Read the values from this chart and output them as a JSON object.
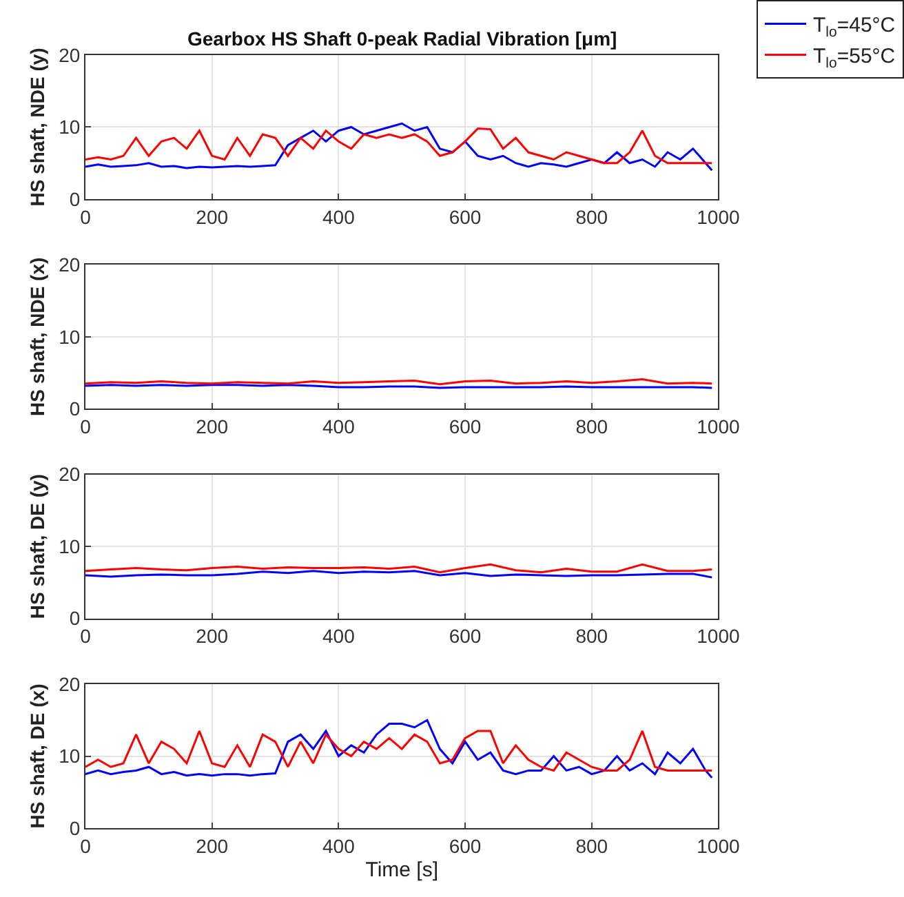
{
  "chart_data": [
    {
      "type": "line",
      "title": "Gearbox HS Shaft 0-peak Radial Vibration [μm]",
      "ylabel": "HS shaft, NDE (y)",
      "xlim": [
        0,
        1000
      ],
      "xticks": [
        0,
        200,
        400,
        600,
        800,
        1000
      ],
      "ylim": [
        0,
        20
      ],
      "yticks": [
        0,
        10,
        20
      ],
      "grid": true,
      "legend": "top right",
      "line_style": "solid",
      "x": [
        0,
        20,
        40,
        60,
        80,
        100,
        120,
        140,
        160,
        180,
        200,
        220,
        240,
        260,
        280,
        300,
        320,
        340,
        360,
        380,
        400,
        420,
        440,
        460,
        480,
        500,
        520,
        540,
        560,
        580,
        600,
        620,
        640,
        660,
        680,
        700,
        720,
        740,
        760,
        780,
        800,
        820,
        840,
        860,
        880,
        900,
        920,
        940,
        960,
        980,
        990
      ],
      "series": [
        {
          "name": "T$_{lo}$=45°C",
          "color": "#0000ff",
          "values": [
            4.5,
            4.8,
            4.5,
            4.6,
            4.7,
            5,
            4.5,
            4.6,
            4.3,
            4.5,
            4.4,
            4.5,
            4.6,
            4.5,
            4.6,
            4.7,
            7.5,
            8.5,
            9.5,
            8,
            9.5,
            10,
            9,
            9.5,
            10,
            10.5,
            9.5,
            10,
            7,
            6.5,
            8,
            6,
            5.5,
            6,
            5,
            4.5,
            5,
            4.8,
            4.5,
            5,
            5.5,
            5,
            6.5,
            5,
            5.5,
            4.5,
            6.5,
            5.5,
            7,
            5,
            4
          ]
        },
        {
          "name": "T$_{lo}$=55°C",
          "color": "#ff0000",
          "values": [
            5.5,
            5.8,
            5.5,
            6,
            8.5,
            6,
            8,
            8.5,
            7,
            9.5,
            6,
            5.5,
            8.5,
            6,
            9,
            8.5,
            6,
            8.5,
            7,
            9.5,
            8,
            7,
            9,
            8.5,
            9,
            8.5,
            9,
            8,
            6,
            6.5,
            8,
            9.8,
            9.7,
            7,
            8.5,
            6.5,
            6,
            5.5,
            6.5,
            6,
            5.5,
            5,
            5,
            6.5,
            9.5,
            6,
            5,
            5,
            5,
            5,
            5
          ]
        }
      ]
    },
    {
      "type": "line",
      "ylabel": "HS shaft, NDE (x)",
      "xlim": [
        0,
        1000
      ],
      "xticks": [
        0,
        200,
        400,
        600,
        800,
        1000
      ],
      "ylim": [
        0,
        20
      ],
      "yticks": [
        0,
        10,
        20
      ],
      "grid": true,
      "line_style": "solid",
      "x": [
        0,
        40,
        80,
        120,
        160,
        200,
        240,
        280,
        320,
        360,
        400,
        440,
        480,
        520,
        560,
        600,
        640,
        680,
        720,
        760,
        800,
        840,
        880,
        920,
        960,
        990
      ],
      "series": [
        {
          "color": "#0000ff",
          "values": [
            3.2,
            3.3,
            3.2,
            3.3,
            3.2,
            3.3,
            3.3,
            3.2,
            3.3,
            3.2,
            3.0,
            3.0,
            3.1,
            3.1,
            2.9,
            3.0,
            3.0,
            3.0,
            3.0,
            3.1,
            3.0,
            3.0,
            3.0,
            3.0,
            3.0,
            2.9
          ]
        },
        {
          "color": "#ff0000",
          "values": [
            3.5,
            3.7,
            3.6,
            3.8,
            3.6,
            3.5,
            3.7,
            3.6,
            3.5,
            3.8,
            3.6,
            3.7,
            3.8,
            3.9,
            3.4,
            3.8,
            3.9,
            3.5,
            3.6,
            3.8,
            3.6,
            3.8,
            4.1,
            3.5,
            3.6,
            3.5
          ]
        }
      ]
    },
    {
      "type": "line",
      "ylabel": "HS shaft, DE (y)",
      "xlim": [
        0,
        1000
      ],
      "xticks": [
        0,
        200,
        400,
        600,
        800,
        1000
      ],
      "ylim": [
        0,
        20
      ],
      "yticks": [
        0,
        10,
        20
      ],
      "grid": true,
      "line_style": "solid",
      "x": [
        0,
        40,
        80,
        120,
        160,
        200,
        240,
        280,
        320,
        360,
        400,
        440,
        480,
        520,
        560,
        600,
        640,
        680,
        720,
        760,
        800,
        840,
        880,
        920,
        960,
        990
      ],
      "series": [
        {
          "color": "#0000ff",
          "values": [
            6.0,
            5.8,
            6.0,
            6.1,
            6.0,
            6.0,
            6.2,
            6.5,
            6.3,
            6.6,
            6.3,
            6.5,
            6.4,
            6.6,
            6.0,
            6.3,
            5.9,
            6.1,
            6.0,
            5.9,
            6.0,
            6.0,
            6.1,
            6.2,
            6.2,
            5.7
          ]
        },
        {
          "color": "#ff0000",
          "values": [
            6.6,
            6.8,
            7.0,
            6.8,
            6.7,
            7.0,
            7.2,
            6.9,
            7.1,
            7.0,
            7.0,
            7.1,
            6.9,
            7.2,
            6.4,
            7.0,
            7.5,
            6.7,
            6.4,
            6.9,
            6.5,
            6.5,
            7.5,
            6.6,
            6.6,
            6.8
          ]
        }
      ]
    },
    {
      "type": "line",
      "ylabel": "HS shaft, DE (x)",
      "xlabel": "Time [s]",
      "xlim": [
        0,
        1000
      ],
      "xticks": [
        0,
        200,
        400,
        600,
        800,
        1000
      ],
      "ylim": [
        0,
        20
      ],
      "yticks": [
        0,
        10,
        20
      ],
      "grid": true,
      "line_style": "solid",
      "x": [
        0,
        20,
        40,
        60,
        80,
        100,
        120,
        140,
        160,
        180,
        200,
        220,
        240,
        260,
        280,
        300,
        320,
        340,
        360,
        380,
        400,
        420,
        440,
        460,
        480,
        500,
        520,
        540,
        560,
        580,
        600,
        620,
        640,
        660,
        680,
        700,
        720,
        740,
        760,
        780,
        800,
        820,
        840,
        860,
        880,
        900,
        920,
        940,
        960,
        980,
        990
      ],
      "series": [
        {
          "color": "#0000ff",
          "values": [
            7.5,
            8,
            7.5,
            7.8,
            8,
            8.5,
            7.5,
            7.8,
            7.3,
            7.5,
            7.3,
            7.5,
            7.5,
            7.3,
            7.5,
            7.6,
            12,
            13,
            11,
            13.5,
            10,
            11.5,
            10.5,
            13,
            14.5,
            14.5,
            14,
            15,
            11,
            9,
            12,
            9.5,
            10.5,
            8,
            7.5,
            8,
            8,
            10,
            8,
            8.5,
            7.5,
            8,
            10,
            8,
            9,
            7.5,
            10.5,
            9,
            11,
            8,
            7
          ]
        },
        {
          "color": "#ff0000",
          "values": [
            8.5,
            9.5,
            8.5,
            9,
            13,
            9,
            12,
            11,
            9,
            13.5,
            9,
            8.5,
            11.5,
            8.5,
            13,
            12,
            8.5,
            12,
            9,
            13,
            11,
            10,
            12,
            11,
            12.5,
            11,
            13,
            12,
            9,
            9.5,
            12.5,
            13.5,
            13.5,
            9,
            11.5,
            9.5,
            8.5,
            8,
            10.5,
            9.5,
            8.5,
            8,
            8,
            9.5,
            13.5,
            8.5,
            8,
            8,
            8,
            8,
            8
          ]
        }
      ]
    }
  ]
}
